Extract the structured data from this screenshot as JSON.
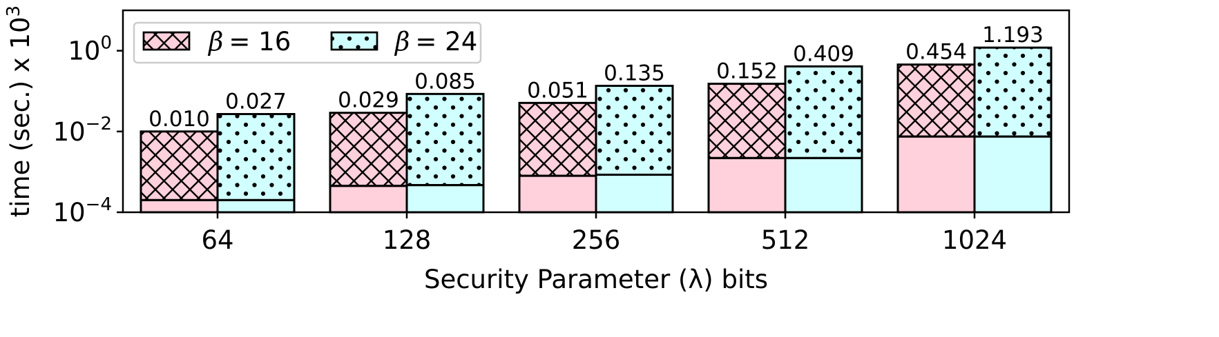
{
  "chart_data": {
    "type": "bar",
    "xlabel": "Security Parameter (λ) bits",
    "ylabel": "time (sec.) x 10",
    "ylabel_exponent": "3",
    "yscale": "log",
    "ylim": [
      0.0001,
      10
    ],
    "yticks": [
      {
        "value": 0.0001,
        "base": "10",
        "exp": "−4"
      },
      {
        "value": 0.01,
        "base": "10",
        "exp": "−2"
      },
      {
        "value": 1,
        "base": "10",
        "exp": "0"
      }
    ],
    "grid": false,
    "legend_position": "top-left",
    "categories": [
      "64",
      "128",
      "256",
      "512",
      "1024"
    ],
    "series": [
      {
        "name": "β = 16",
        "legend_symbol": "β",
        "legend_value": "= 16",
        "color": "#ffd1dc",
        "hatch": "crosshatch",
        "values": [
          0.01,
          0.029,
          0.051,
          0.152,
          0.454
        ],
        "labels": [
          "0.010",
          "0.029",
          "0.051",
          "0.152",
          "0.454"
        ],
        "base_segment_values": [
          0.0002,
          0.00045,
          0.0008,
          0.0022,
          0.0075
        ]
      },
      {
        "name": "β = 24",
        "legend_symbol": "β",
        "legend_value": "= 24",
        "color": "#d1ffff",
        "hatch": "dots",
        "values": [
          0.027,
          0.085,
          0.135,
          0.409,
          1.193
        ],
        "labels": [
          "0.027",
          "0.085",
          "0.135",
          "0.409",
          "1.193"
        ],
        "base_segment_values": [
          0.0002,
          0.00047,
          0.00085,
          0.0022,
          0.0075
        ]
      }
    ]
  }
}
